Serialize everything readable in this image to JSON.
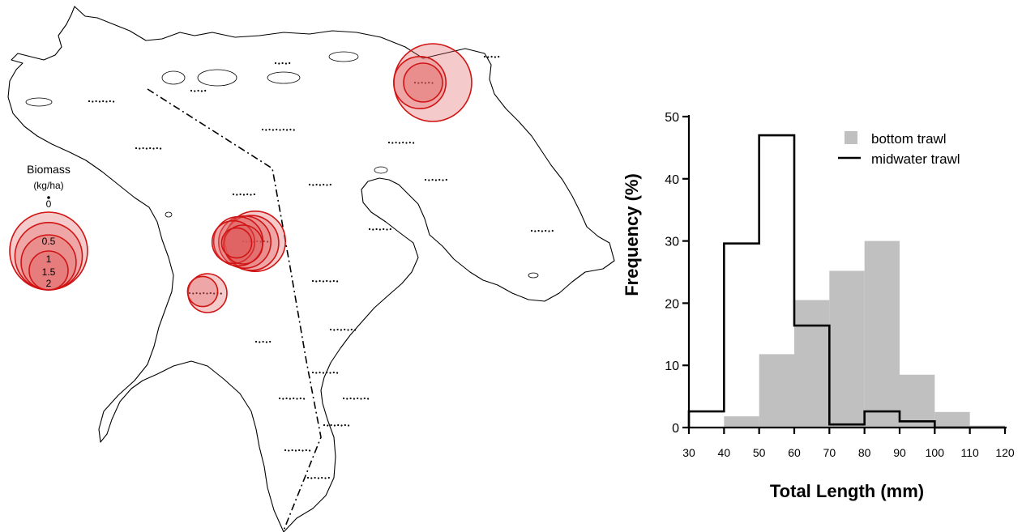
{
  "map": {
    "legend": {
      "title": "Biomass",
      "unit": "(kg/ha)",
      "values": [
        0,
        0.5,
        1,
        1.5,
        2
      ],
      "labels": [
        "0",
        "0.5",
        "1",
        "1.5",
        "2"
      ]
    },
    "bubble_fill": "#e05a5a",
    "bubble_stroke": "#d01414",
    "nonzero_sites": [
      {
        "site": "north-east",
        "biomass": [
          2.0,
          0.9,
          0.5
        ]
      },
      {
        "site": "central-west",
        "biomass": [
          1.2,
          1.0,
          0.9,
          0.8,
          0.6,
          0.5,
          0.3
        ]
      },
      {
        "site": "south-west",
        "biomass": [
          0.5,
          0.3
        ]
      }
    ]
  },
  "chart_data": {
    "type": "bar",
    "title": "",
    "xlabel": "Total Length (mm)",
    "ylabel": "Frequency (%)",
    "xlim": [
      30,
      120
    ],
    "ylim": [
      0,
      50
    ],
    "x_ticks": [
      30,
      40,
      50,
      60,
      70,
      80,
      90,
      100,
      110,
      120
    ],
    "y_ticks": [
      0,
      10,
      20,
      30,
      40,
      50
    ],
    "bin_edges": [
      30,
      40,
      50,
      60,
      70,
      80,
      90,
      100,
      110,
      120
    ],
    "legend_position": "top-right",
    "series": [
      {
        "name": "bottom trawl",
        "style": "filled",
        "color": "#c0c0c0",
        "values": [
          0,
          1.8,
          11.8,
          20.5,
          25.2,
          30.0,
          8.5,
          2.5,
          0.3
        ]
      },
      {
        "name": "midwater trawl",
        "style": "step-outline",
        "color": "#000000",
        "values": [
          2.6,
          29.6,
          47.0,
          16.4,
          0.5,
          2.6,
          1.0,
          0,
          0
        ]
      }
    ]
  }
}
